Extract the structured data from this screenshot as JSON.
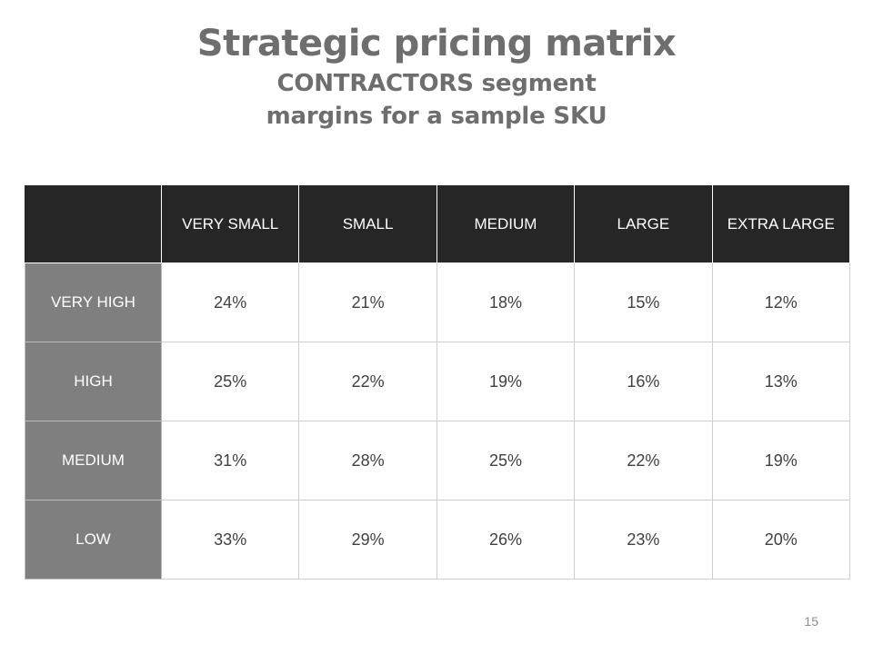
{
  "header": {
    "title": "Strategic pricing matrix",
    "subtitle_line1": "CONTRACTORS segment",
    "subtitle_line2": "margins for a sample SKU"
  },
  "matrix": {
    "column_headers": [
      "VERY SMALL",
      "SMALL",
      "MEDIUM",
      "LARGE",
      "EXTRA LARGE"
    ],
    "rows": [
      {
        "label": "VERY HIGH",
        "values": [
          "24%",
          "21%",
          "18%",
          "15%",
          "12%"
        ]
      },
      {
        "label": "HIGH",
        "values": [
          "25%",
          "22%",
          "19%",
          "16%",
          "13%"
        ]
      },
      {
        "label": "MEDIUM",
        "values": [
          "31%",
          "28%",
          "25%",
          "22%",
          "19%"
        ]
      },
      {
        "label": "LOW",
        "values": [
          "33%",
          "29%",
          "26%",
          "23%",
          "20%"
        ]
      }
    ]
  },
  "footer": {
    "page_number": "15"
  },
  "colors": {
    "title_text": "#6e6e6e",
    "header_bg": "#262626",
    "row_label_bg": "#7f7f7f",
    "cell_text": "#404040"
  }
}
